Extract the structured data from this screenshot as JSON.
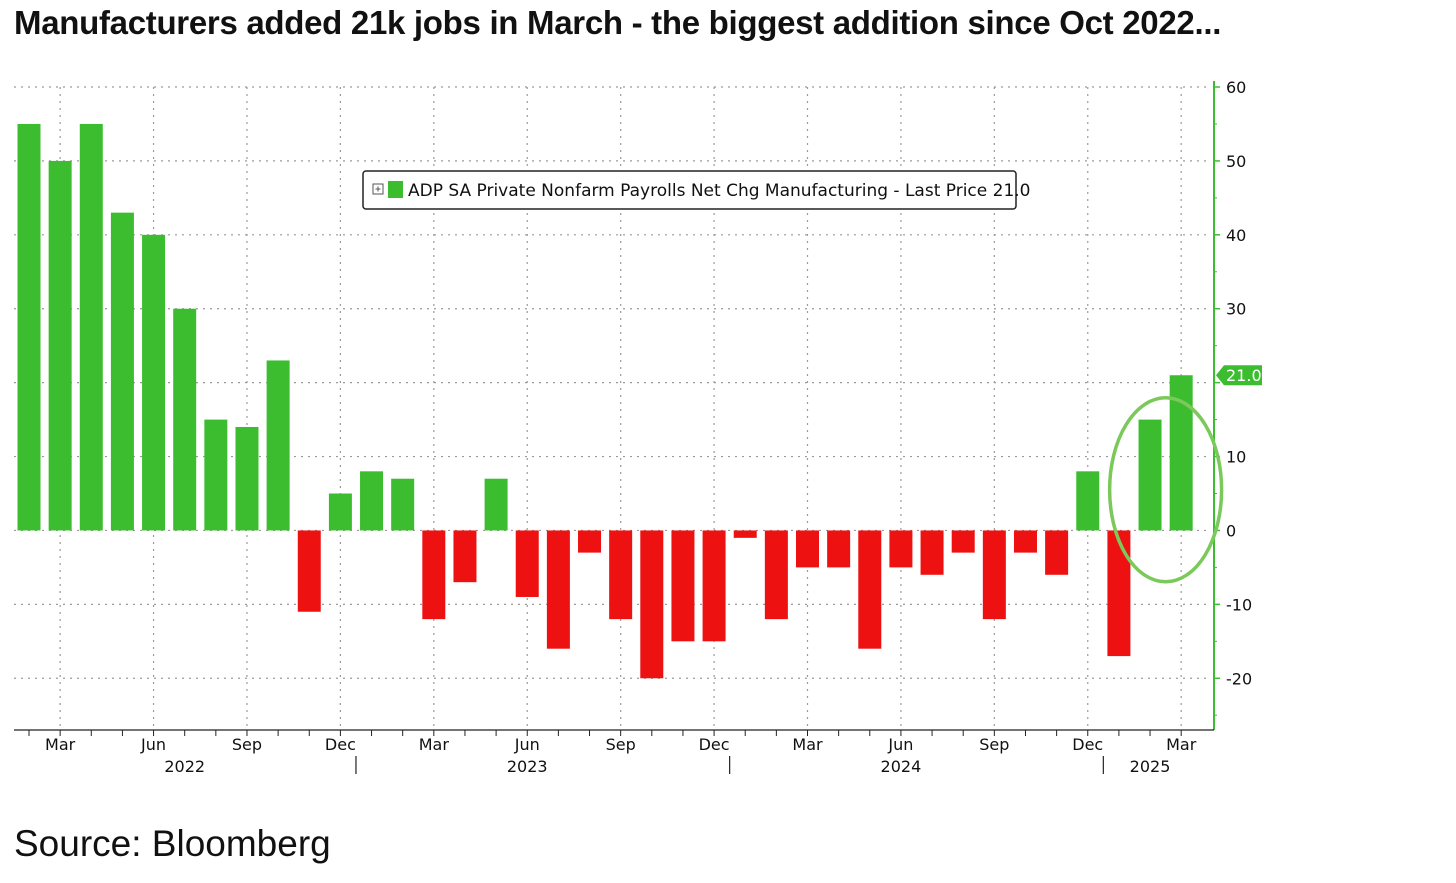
{
  "page": {
    "title": "Manufacturers added 21k jobs in March - the biggest addition since Oct 2022...",
    "source": "Source: Bloomberg"
  },
  "colors": {
    "positive": "#3cbd2f",
    "negative": "#ee1111",
    "axis": "#3cbd2f",
    "grid": "#9a9a9a",
    "highlight": "#7ac95a"
  },
  "chart_data": {
    "type": "bar",
    "legend": {
      "icon": "expand-box-icon",
      "text": "ADP SA Private Nonfarm Payrolls Net Chg Manufacturing - Last Price 21.0",
      "position": "top-center"
    },
    "last_value_label": "21.0",
    "ylim": [
      -27,
      60
    ],
    "yticks": [
      60,
      50,
      40,
      30,
      20,
      10,
      0,
      -10,
      -20
    ],
    "ytick_labels": [
      "60",
      "50",
      "40",
      "30",
      "",
      "10",
      "0",
      "-10",
      "-20"
    ],
    "grid": true,
    "months": [
      "2022-02",
      "2022-03",
      "2022-04",
      "2022-05",
      "2022-06",
      "2022-07",
      "2022-08",
      "2022-09",
      "2022-10",
      "2022-11",
      "2022-12",
      "2023-01",
      "2023-02",
      "2023-03",
      "2023-04",
      "2023-05",
      "2023-06",
      "2023-07",
      "2023-08",
      "2023-09",
      "2023-10",
      "2023-11",
      "2023-12",
      "2024-01",
      "2024-02",
      "2024-03",
      "2024-04",
      "2024-05",
      "2024-06",
      "2024-07",
      "2024-08",
      "2024-09",
      "2024-10",
      "2024-11",
      "2024-12",
      "2025-01",
      "2025-02",
      "2025-03"
    ],
    "values": [
      55,
      50,
      55,
      43,
      40,
      30,
      15,
      14,
      23,
      -11,
      5,
      8,
      7,
      -12,
      -7,
      7,
      -9,
      -16,
      -3,
      -12,
      -20,
      -15,
      -15,
      -1,
      -12,
      -5,
      -5,
      -16,
      -5,
      -6,
      -3,
      -12,
      -3,
      -6,
      8,
      -17,
      15,
      21
    ],
    "xtick_months": [
      "Mar",
      "Jun",
      "Sep",
      "Dec",
      "Mar",
      "Jun",
      "Sep",
      "Dec",
      "Mar",
      "Jun",
      "Sep",
      "Dec",
      "Mar"
    ],
    "xtick_indices": [
      1,
      4,
      7,
      10,
      13,
      16,
      19,
      22,
      25,
      28,
      31,
      34,
      37
    ],
    "year_labels": [
      {
        "label": "2022",
        "index": 5
      },
      {
        "label": "2023",
        "index": 16
      },
      {
        "label": "2024",
        "index": 28
      },
      {
        "label": "2025",
        "index": 36
      }
    ],
    "year_dividers": [
      10.5,
      22.5,
      34.5
    ],
    "highlighted_indices": [
      36,
      37
    ]
  }
}
